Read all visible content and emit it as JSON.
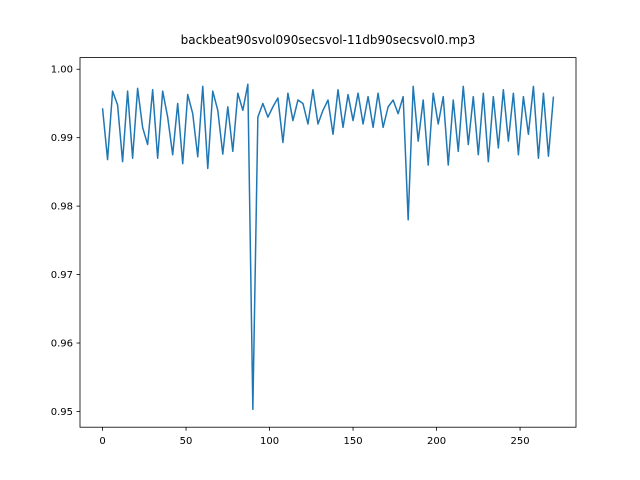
{
  "chart_data": {
    "type": "line",
    "title": "backbeat90svol090secsvol-11db90secsvol0.mp3",
    "x": [
      0,
      3,
      6,
      9,
      12,
      15,
      18,
      21,
      24,
      27,
      30,
      33,
      36,
      39,
      42,
      45,
      48,
      51,
      54,
      57,
      60,
      63,
      66,
      69,
      72,
      75,
      78,
      81,
      84,
      87,
      90,
      93,
      96,
      99,
      102,
      105,
      108,
      111,
      114,
      117,
      120,
      123,
      126,
      129,
      132,
      135,
      138,
      141,
      144,
      147,
      150,
      153,
      156,
      159,
      162,
      165,
      168,
      171,
      174,
      177,
      180,
      183,
      186,
      189,
      192,
      195,
      198,
      201,
      204,
      207,
      210,
      213,
      216,
      219,
      222,
      225,
      228,
      231,
      234,
      237,
      240,
      243,
      246,
      249,
      252,
      255,
      258,
      261,
      264,
      267,
      270
    ],
    "series": [
      {
        "color": "#1f77b4",
        "values": [
          0.9943,
          0.9868,
          0.9968,
          0.9948,
          0.9865,
          0.9968,
          0.987,
          0.9972,
          0.9915,
          0.989,
          0.997,
          0.987,
          0.9968,
          0.993,
          0.9875,
          0.995,
          0.9862,
          0.9963,
          0.9935,
          0.9872,
          0.9975,
          0.9855,
          0.9968,
          0.994,
          0.9876,
          0.9945,
          0.988,
          0.9965,
          0.994,
          0.9978,
          0.9503,
          0.993,
          0.995,
          0.993,
          0.9945,
          0.9958,
          0.9893,
          0.9965,
          0.9925,
          0.9955,
          0.995,
          0.992,
          0.997,
          0.992,
          0.994,
          0.9955,
          0.9905,
          0.997,
          0.9915,
          0.9963,
          0.9925,
          0.9965,
          0.992,
          0.996,
          0.9915,
          0.9965,
          0.9915,
          0.9945,
          0.9955,
          0.9935,
          0.996,
          0.978,
          0.9975,
          0.9895,
          0.9955,
          0.986,
          0.9965,
          0.992,
          0.996,
          0.986,
          0.9955,
          0.988,
          0.9975,
          0.989,
          0.996,
          0.9875,
          0.9965,
          0.9865,
          0.996,
          0.9885,
          0.997,
          0.9895,
          0.9965,
          0.9875,
          0.996,
          0.9905,
          0.9975,
          0.987,
          0.9965,
          0.9873,
          0.996
        ]
      }
    ],
    "xlim": [
      -13.5,
      283.5
    ],
    "xticks": [
      0,
      50,
      100,
      150,
      200,
      250
    ],
    "ylim": [
      0.9477,
      1.0017
    ],
    "yticks": [
      0.95,
      0.96,
      0.97,
      0.98,
      0.99,
      {
        "value": 1,
        "label": "1.00"
      }
    ]
  }
}
